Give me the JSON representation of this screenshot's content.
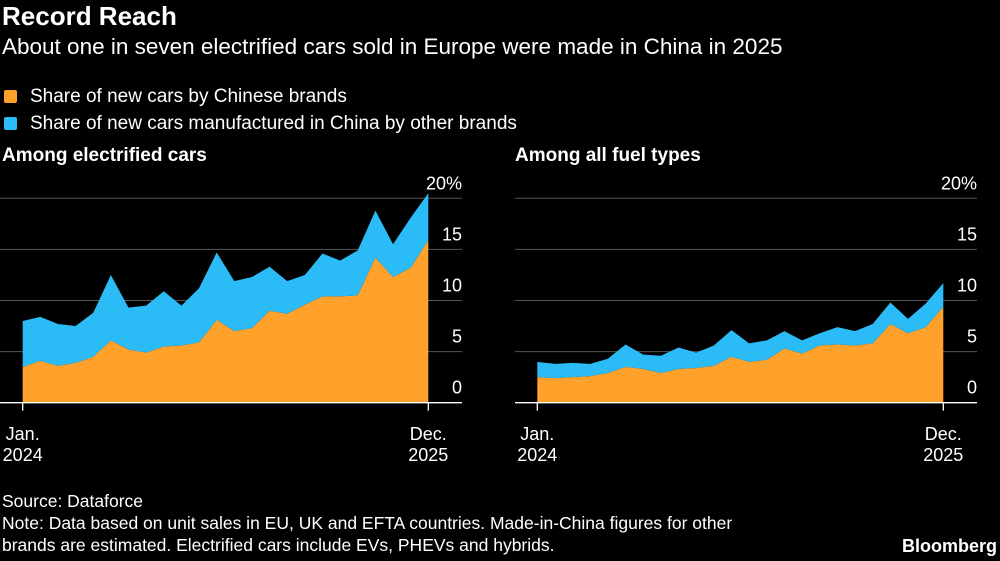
{
  "title": "Record Reach",
  "subtitle": "About one in seven electrified cars sold in Europe were made in China in 2025",
  "legend": [
    {
      "label": "Share of new cars by Chinese brands",
      "color": "#FFA12B"
    },
    {
      "label": "Share of new cars manufactured in China by other brands",
      "color": "#2BBCF7"
    }
  ],
  "source": "Source: Dataforce",
  "note_line1": "Note: Data based on unit sales in EU, UK and EFTA countries. Made-in-China figures for other",
  "note_line2": "brands are estimated. Electrified cars include EVs, PHEVs and hybrids.",
  "brand": "Bloomberg",
  "chart_data": [
    {
      "type": "area",
      "stacked": true,
      "title": "Among electrified cars",
      "x_start": "Jan. 2024",
      "x_end": "Dec. 2025",
      "x_tick_labels": [
        [
          "Jan.",
          "2024"
        ],
        [
          "Dec.",
          "2025"
        ]
      ],
      "y_tick_labels": [
        "0",
        "5",
        "10",
        "15",
        "20%"
      ],
      "ylim": [
        0,
        20
      ],
      "grid": true,
      "series": [
        {
          "name": "Share of new cars by Chinese brands",
          "color": "#FFA12B",
          "values": [
            3.5,
            4.1,
            3.6,
            3.9,
            4.5,
            6.1,
            5.2,
            4.9,
            5.5,
            5.6,
            5.9,
            8.1,
            7.0,
            7.3,
            9.0,
            8.7,
            9.6,
            10.4,
            10.4,
            10.5,
            14.2,
            12.3,
            13.2,
            15.9
          ]
        },
        {
          "name": "Share of new cars manufactured in China by other brands",
          "color": "#2BBCF7",
          "values": [
            4.5,
            4.3,
            4.1,
            3.6,
            4.3,
            6.4,
            4.1,
            4.6,
            5.4,
            3.9,
            5.3,
            6.6,
            4.9,
            5.0,
            4.3,
            3.2,
            2.9,
            4.2,
            3.5,
            4.4,
            4.6,
            3.2,
            4.9,
            4.6
          ]
        }
      ]
    },
    {
      "type": "area",
      "stacked": true,
      "title": "Among all fuel types",
      "x_start": "Jan. 2024",
      "x_end": "Dec. 2025",
      "x_tick_labels": [
        [
          "Jan.",
          "2024"
        ],
        [
          "Dec.",
          "2025"
        ]
      ],
      "y_tick_labels": [
        "0",
        "5",
        "10",
        "15",
        "20%"
      ],
      "ylim": [
        0,
        20
      ],
      "grid": true,
      "series": [
        {
          "name": "Share of new cars by Chinese brands",
          "color": "#FFA12B",
          "values": [
            2.5,
            2.4,
            2.5,
            2.6,
            2.9,
            3.5,
            3.3,
            2.9,
            3.3,
            3.4,
            3.6,
            4.5,
            4.0,
            4.2,
            5.3,
            4.8,
            5.6,
            5.7,
            5.6,
            5.8,
            7.7,
            6.8,
            7.4,
            9.4
          ]
        },
        {
          "name": "Share of new cars manufactured in China by other brands",
          "color": "#2BBCF7",
          "values": [
            1.5,
            1.4,
            1.4,
            1.2,
            1.4,
            2.2,
            1.4,
            1.7,
            2.1,
            1.5,
            2.0,
            2.6,
            1.8,
            1.9,
            1.7,
            1.3,
            1.2,
            1.7,
            1.4,
            1.9,
            2.1,
            1.4,
            2.3,
            2.3
          ]
        }
      ]
    }
  ]
}
